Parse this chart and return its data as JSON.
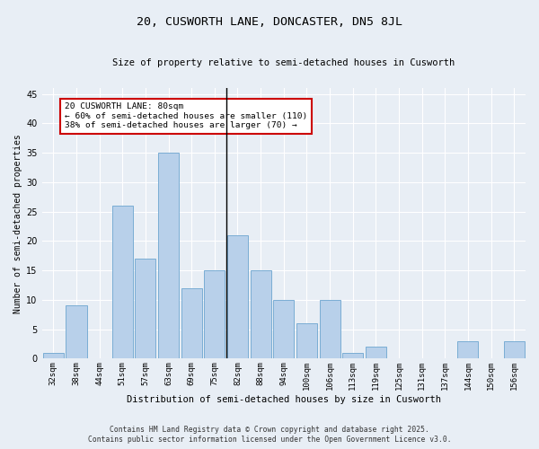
{
  "title": "20, CUSWORTH LANE, DONCASTER, DN5 8JL",
  "subtitle": "Size of property relative to semi-detached houses in Cusworth",
  "xlabel": "Distribution of semi-detached houses by size in Cusworth",
  "ylabel": "Number of semi-detached properties",
  "categories": [
    "32sqm",
    "38sqm",
    "44sqm",
    "51sqm",
    "57sqm",
    "63sqm",
    "69sqm",
    "75sqm",
    "82sqm",
    "88sqm",
    "94sqm",
    "100sqm",
    "106sqm",
    "113sqm",
    "119sqm",
    "125sqm",
    "131sqm",
    "137sqm",
    "144sqm",
    "150sqm",
    "156sqm"
  ],
  "values": [
    1,
    9,
    0,
    26,
    17,
    35,
    12,
    15,
    21,
    15,
    10,
    6,
    10,
    1,
    2,
    0,
    0,
    0,
    3,
    0,
    3
  ],
  "bar_color": "#b8d0ea",
  "bar_edge_color": "#7aadd4",
  "highlight_index": 8,
  "highlight_line_color": "#000000",
  "annotation_text": "20 CUSWORTH LANE: 80sqm\n← 60% of semi-detached houses are smaller (110)\n38% of semi-detached houses are larger (70) →",
  "annotation_box_color": "#ffffff",
  "annotation_box_edge_color": "#cc0000",
  "ylim": [
    0,
    46
  ],
  "yticks": [
    0,
    5,
    10,
    15,
    20,
    25,
    30,
    35,
    40,
    45
  ],
  "background_color": "#e8eef5",
  "grid_color": "#ffffff",
  "footer_line1": "Contains HM Land Registry data © Crown copyright and database right 2025.",
  "footer_line2": "Contains public sector information licensed under the Open Government Licence v3.0."
}
